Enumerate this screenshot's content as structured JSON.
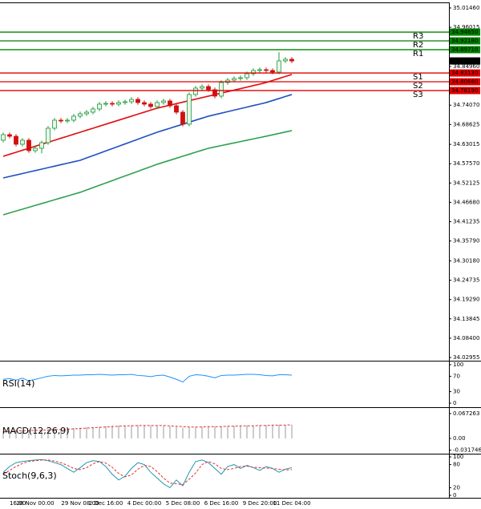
{
  "chart_data": [
    {
      "type": "candlestick",
      "categories": [
        null,
        "16:00",
        null,
        null,
        null,
        "28 Nov 00:00",
        null,
        null,
        null,
        null,
        null,
        null,
        "29 Nov 08:00",
        null,
        null,
        null,
        "2 Dec 16:00",
        null,
        null,
        null,
        null,
        null,
        "4 Dec 00:00",
        null,
        null,
        null,
        null,
        null,
        "5 Dec 08:00",
        null,
        null,
        null,
        null,
        null,
        "6 Dec 16:00",
        null,
        null,
        null,
        null,
        null,
        "9 Dec 20:00",
        null,
        null,
        null,
        null,
        "11 Dec 04:00"
      ],
      "open": [
        34.6418,
        34.6576,
        34.653,
        34.6305,
        34.6418,
        34.6124,
        34.6192,
        34.635,
        34.6757,
        34.6983,
        34.696,
        34.6983,
        34.7096,
        34.7164,
        34.7209,
        34.7299,
        34.7435,
        34.7457,
        34.7435,
        34.748,
        34.7503,
        34.757,
        34.748,
        34.7435,
        34.7367,
        34.748,
        34.7525,
        34.739,
        34.7209,
        34.687,
        34.7706,
        34.7887,
        34.7932,
        34.7842,
        34.7661,
        34.8045,
        34.8113,
        34.8158,
        34.818,
        34.8293,
        34.8384,
        34.8406,
        34.8384,
        34.8339,
        34.8655,
        34.87
      ],
      "high": [
        34.6636,
        34.6636,
        34.659,
        34.6478,
        34.6478,
        34.6252,
        34.641,
        34.6817,
        34.7043,
        34.7043,
        34.7043,
        34.7156,
        34.7224,
        34.7269,
        34.7359,
        34.7495,
        34.7517,
        34.7517,
        34.754,
        34.7563,
        34.763,
        34.763,
        34.754,
        34.7495,
        34.754,
        34.7585,
        34.7585,
        34.745,
        34.7269,
        34.7766,
        34.7947,
        34.7992,
        34.7992,
        34.7902,
        34.8105,
        34.8173,
        34.8218,
        34.824,
        34.8353,
        34.8444,
        34.8466,
        34.8466,
        34.8444,
        34.89,
        34.876,
        34.876
      ],
      "low": [
        34.6358,
        34.647,
        34.6245,
        34.6245,
        34.6064,
        34.6064,
        34.605,
        34.629,
        34.6697,
        34.69,
        34.69,
        34.6923,
        34.7036,
        34.7104,
        34.7149,
        34.7239,
        34.7375,
        34.7375,
        34.7375,
        34.742,
        34.7443,
        34.742,
        34.7375,
        34.7307,
        34.7307,
        34.742,
        34.733,
        34.7149,
        34.681,
        34.681,
        34.7646,
        34.7827,
        34.7782,
        34.7601,
        34.7601,
        34.7985,
        34.8053,
        34.8098,
        34.812,
        34.8233,
        34.8324,
        34.8324,
        34.8279,
        34.8279,
        34.8595,
        34.8592
      ],
      "close": [
        34.6576,
        34.653,
        34.6305,
        34.6418,
        34.6124,
        34.6192,
        34.635,
        34.6757,
        34.6983,
        34.696,
        34.6983,
        34.7096,
        34.7164,
        34.7209,
        34.7299,
        34.7435,
        34.7457,
        34.7435,
        34.748,
        34.7503,
        34.757,
        34.748,
        34.7435,
        34.7367,
        34.748,
        34.7525,
        34.739,
        34.7209,
        34.687,
        34.7706,
        34.7887,
        34.7932,
        34.7842,
        34.7661,
        34.8045,
        34.8113,
        34.8158,
        34.818,
        34.8293,
        34.8384,
        34.8406,
        34.8384,
        34.8339,
        34.8655,
        34.87,
        34.8652
      ],
      "bull_color": "#1f9a3a",
      "bear_color": "#d01010",
      "overlays": [
        {
          "color": "#e01010",
          "values": [
            34.5966,
            34.6023,
            34.6079,
            34.6136,
            34.6192,
            34.6249,
            34.6305,
            34.6362,
            34.6418,
            34.6475,
            34.6531,
            34.6588,
            34.6644,
            34.6701,
            34.6757,
            34.6814,
            34.687,
            34.6927,
            34.6983,
            34.704,
            34.7096,
            34.7153,
            34.7209,
            34.7266,
            34.7322,
            34.7364,
            34.7407,
            34.7449,
            34.7492,
            34.7534,
            34.7576,
            34.7619,
            34.7661,
            34.7703,
            34.7746,
            34.7788,
            34.7831,
            34.7873,
            34.7915,
            34.7958,
            34.8,
            34.8045,
            34.8102,
            34.8158,
            34.8215,
            34.8271
          ]
        },
        {
          "color": "#2050c0",
          "values": [
            34.5356,
            34.5397,
            34.5439,
            34.548,
            34.5522,
            34.5563,
            34.5604,
            34.5646,
            34.5687,
            34.5729,
            34.577,
            34.5812,
            34.5853,
            34.5919,
            34.5985,
            34.6051,
            34.6117,
            34.6183,
            34.6249,
            34.6314,
            34.638,
            34.6446,
            34.6512,
            34.6578,
            34.6644,
            34.6701,
            34.6757,
            34.6814,
            34.687,
            34.6927,
            34.6983,
            34.704,
            34.7096,
            34.7139,
            34.7181,
            34.7224,
            34.7267,
            34.7309,
            34.7352,
            34.7395,
            34.7437,
            34.748,
            34.7537,
            34.7593,
            34.765,
            34.7706
          ]
        },
        {
          "color": "#30a050",
          "values": [
            34.4317,
            34.437,
            34.4423,
            34.4475,
            34.4528,
            34.4581,
            34.4634,
            34.4687,
            34.4739,
            34.4792,
            34.4845,
            34.4898,
            34.495,
            34.5016,
            34.5082,
            34.5148,
            34.5214,
            34.528,
            34.5346,
            34.5411,
            34.5477,
            34.5543,
            34.5609,
            34.5675,
            34.5741,
            34.5797,
            34.5854,
            34.591,
            34.5967,
            34.6023,
            34.608,
            34.6136,
            34.6192,
            34.623,
            34.6268,
            34.6305,
            34.6343,
            34.6381,
            34.6418,
            34.6456,
            34.6494,
            34.6531,
            34.6571,
            34.661,
            34.665,
            34.6689
          ]
        }
      ],
      "pivots": [
        {
          "name": "R3",
          "value": 34.9465,
          "label": "34.94650",
          "color": "#008000"
        },
        {
          "name": "R2",
          "value": 34.9218,
          "label": "34.92180",
          "color": "#008000"
        },
        {
          "name": "R1",
          "value": 34.8971,
          "label": "34.89710",
          "color": "#008000"
        },
        {
          "name": "S1",
          "value": 34.8313,
          "label": "34.83130",
          "color": "#e00000"
        },
        {
          "name": "S2",
          "value": 34.8066,
          "label": "34.80660",
          "color": "#e00000"
        },
        {
          "name": "S3",
          "value": 34.7819,
          "label": "34.78190",
          "color": "#e00000"
        }
      ],
      "last_price": 34.86522,
      "ylim": [
        34.025,
        35.028
      ],
      "yticks": [
        {
          "value": 35.0146,
          "label": "35.01460"
        },
        {
          "value": 34.96015,
          "label": "34.96015"
        },
        {
          "value": 34.8496,
          "label": "34.84960"
        },
        {
          "value": 34.7407,
          "label": "34.74070"
        },
        {
          "value": 34.68625,
          "label": "34.68625"
        },
        {
          "value": 34.63015,
          "label": "34.63015"
        },
        {
          "value": 34.5757,
          "label": "34.57570"
        },
        {
          "value": 34.52125,
          "label": "34.52125"
        },
        {
          "value": 34.4668,
          "label": "34.46680"
        },
        {
          "value": 34.41235,
          "label": "34.41235"
        },
        {
          "value": 34.3579,
          "label": "34.35790"
        },
        {
          "value": 34.3018,
          "label": "34.30180"
        },
        {
          "value": 34.24735,
          "label": "34.24735"
        },
        {
          "value": 34.1929,
          "label": "34.19290"
        },
        {
          "value": 34.13845,
          "label": "34.13845"
        },
        {
          "value": 34.084,
          "label": "34.08400"
        },
        {
          "value": 34.02955,
          "label": "34.02955"
        }
      ]
    },
    {
      "type": "line",
      "label": "RSI(14)",
      "ylim": [
        0,
        100
      ],
      "yticks": [
        100,
        70,
        30,
        0
      ],
      "series": [
        {
          "color": "#1e90ff",
          "values": [
            62,
            64,
            60,
            65,
            58,
            62,
            66,
            70,
            72,
            71,
            72,
            73,
            73,
            74,
            74,
            75,
            74,
            73,
            74,
            74,
            75,
            72,
            71,
            69,
            72,
            73,
            68,
            62,
            55,
            70,
            74,
            73,
            70,
            66,
            72,
            73,
            73,
            74,
            75,
            75,
            74,
            72,
            71,
            74,
            74,
            73
          ]
        }
      ]
    },
    {
      "type": "macd",
      "label": "MACD(12,26,9)",
      "ylim": [
        -0.039,
        0.078
      ],
      "yticks": [
        0.067263,
        {
          "value": 0,
          "label": "0.00"
        },
        -0.031746
      ],
      "series": [
        {
          "color": "#999999",
          "style": "bar",
          "values": [
            0.02,
            0.021,
            0.021,
            0.022,
            0.022,
            0.023,
            0.023,
            0.024,
            0.025,
            0.026,
            0.027,
            0.028,
            0.029,
            0.03,
            0.031,
            0.032,
            0.033,
            0.034,
            0.035,
            0.035,
            0.036,
            0.036,
            0.036,
            0.035,
            0.035,
            0.034,
            0.033,
            0.031,
            0.029,
            0.03,
            0.031,
            0.032,
            0.032,
            0.032,
            0.033,
            0.033,
            0.034,
            0.034,
            0.035,
            0.035,
            0.036,
            0.036,
            0.036,
            0.037,
            0.037,
            0.037
          ]
        },
        {
          "color": "#e03030",
          "style": "dashed",
          "values": [
            0.018,
            0.019,
            0.02,
            0.021,
            0.021,
            0.022,
            0.022,
            0.023,
            0.024,
            0.024,
            0.025,
            0.026,
            0.027,
            0.028,
            0.029,
            0.03,
            0.031,
            0.032,
            0.033,
            0.034,
            0.034,
            0.035,
            0.035,
            0.035,
            0.035,
            0.035,
            0.034,
            0.033,
            0.032,
            0.031,
            0.031,
            0.031,
            0.032,
            0.032,
            0.032,
            0.033,
            0.033,
            0.034,
            0.034,
            0.034,
            0.035,
            0.035,
            0.036,
            0.036,
            0.036,
            0.037
          ]
        }
      ]
    },
    {
      "type": "line",
      "label": "Stoch(9,6,3)",
      "ylim": [
        0,
        100
      ],
      "yticks": [
        100,
        80,
        20,
        0
      ],
      "series": [
        {
          "color": "#2098b0",
          "values": [
            60,
            75,
            85,
            88,
            90,
            92,
            93,
            90,
            85,
            80,
            70,
            60,
            72,
            85,
            90,
            88,
            75,
            55,
            40,
            50,
            70,
            85,
            80,
            60,
            45,
            30,
            20,
            40,
            25,
            60,
            88,
            92,
            85,
            70,
            55,
            75,
            80,
            70,
            78,
            72,
            65,
            75,
            70,
            60,
            68,
            72
          ]
        },
        {
          "color": "#e03030",
          "style": "dashed",
          "values": [
            55,
            65,
            75,
            83,
            88,
            90,
            92,
            92,
            89,
            85,
            78,
            70,
            67,
            72,
            82,
            88,
            84,
            73,
            57,
            48,
            53,
            68,
            78,
            75,
            62,
            45,
            32,
            30,
            28,
            42,
            58,
            80,
            88,
            82,
            70,
            67,
            70,
            75,
            76,
            73,
            72,
            71,
            70,
            68,
            66,
            67
          ]
        }
      ]
    }
  ]
}
